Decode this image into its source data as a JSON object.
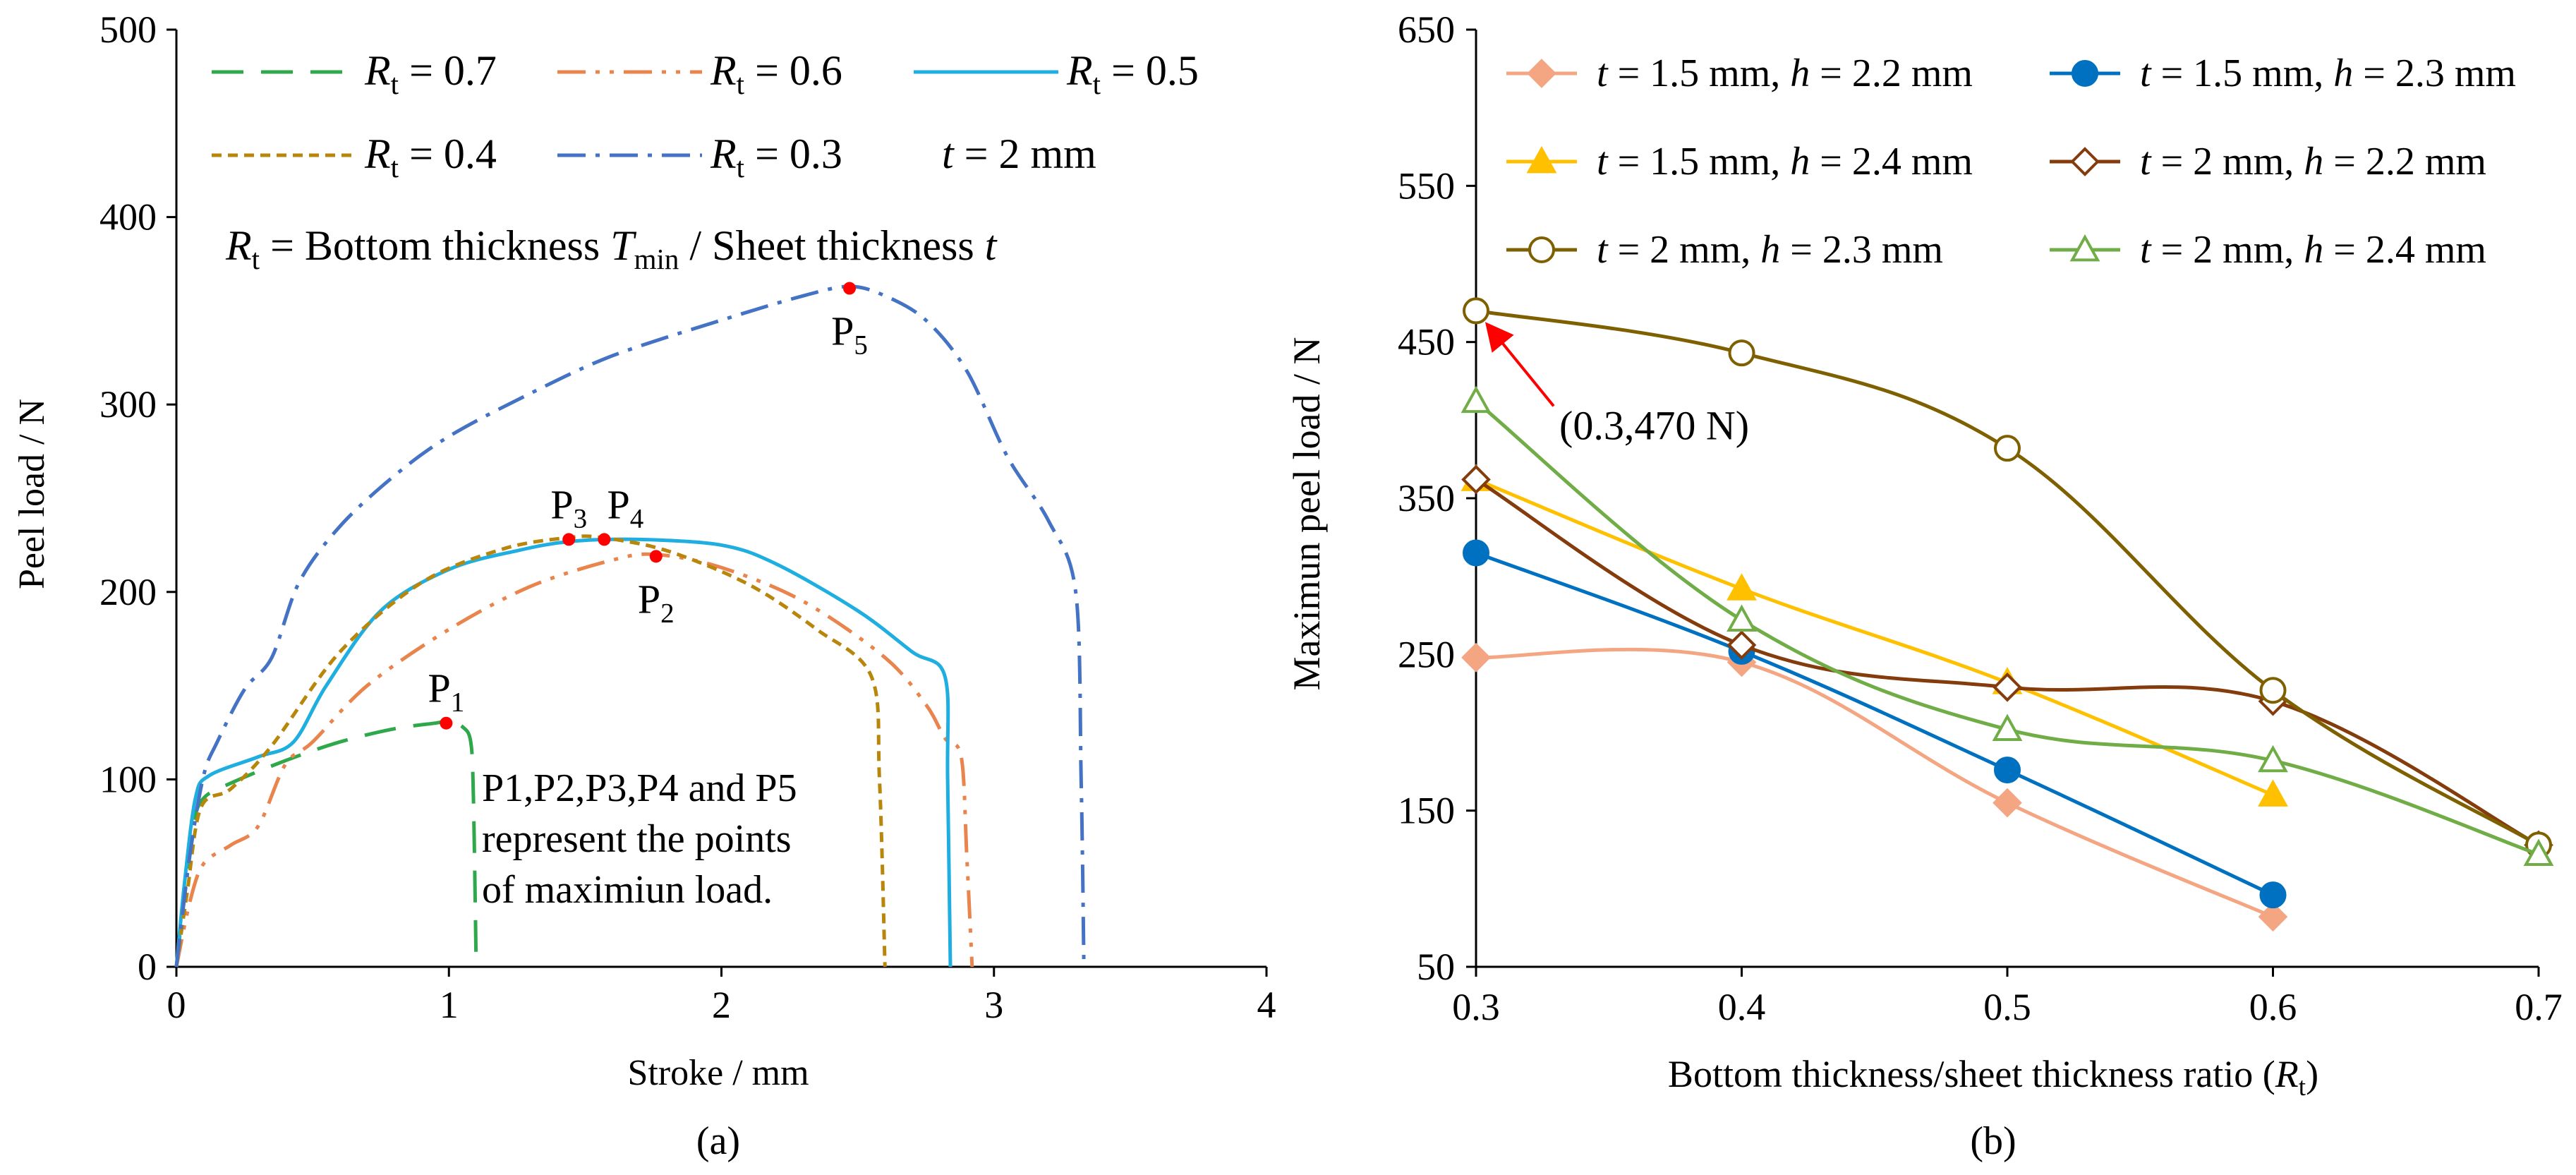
{
  "chart_data": [
    {
      "type": "line",
      "panel_label": "(a)",
      "xlabel": "Stroke / mm",
      "ylabel": "Peel load / N",
      "xlim": [
        0,
        4
      ],
      "ylim": [
        0,
        500
      ],
      "xticks": [
        "0",
        "1",
        "2",
        "3",
        "4"
      ],
      "yticks": [
        "0",
        "100",
        "200",
        "300",
        "400",
        "500"
      ],
      "legend": {
        "rows": [
          [
            {
              "series": 0,
              "sym": "R",
              "sub": "t",
              "text": " = 0.7"
            },
            {
              "series": 1,
              "sym": "R",
              "sub": "t",
              "text": " = 0.6"
            },
            {
              "series": 2,
              "sym": "R",
              "sub": "t",
              "text": " = 0.5"
            }
          ],
          [
            {
              "series": 3,
              "sym": "R",
              "sub": "t",
              "text": " = 0.4"
            },
            {
              "series": 4,
              "sym": "R",
              "sub": "t",
              "text": " = 0.3"
            },
            {
              "series": null,
              "sym": "t",
              "sub": "",
              "text": " = 2 mm"
            }
          ]
        ],
        "definition": {
          "sym1": "R",
          "sub1": "t",
          "mid": " = Bottom thickness ",
          "sym2": "T",
          "sub2": "min",
          "tail": " / Sheet thickness ",
          "sym3": "t"
        }
      },
      "series": [
        {
          "name": "Rt = 0.7",
          "color": "#2EA84A",
          "dash": "45,25",
          "points": [
            [
              0,
              0
            ],
            [
              0.03,
              40
            ],
            [
              0.06,
              75
            ],
            [
              0.1,
              90
            ],
            [
              0.2,
              98
            ],
            [
              0.4,
              110
            ],
            [
              0.6,
              120
            ],
            [
              0.8,
              127
            ],
            [
              0.95,
              130
            ],
            [
              1.0,
              131
            ],
            [
              1.05,
              128
            ],
            [
              1.08,
              120
            ],
            [
              1.09,
              90
            ],
            [
              1.1,
              0
            ]
          ]
        },
        {
          "name": "Rt = 0.6",
          "color": "#E8844C",
          "dash": "40,14,6,14,6,14",
          "points": [
            [
              0,
              0
            ],
            [
              0.05,
              35
            ],
            [
              0.1,
              55
            ],
            [
              0.2,
              65
            ],
            [
              0.3,
              75
            ],
            [
              0.4,
              108
            ],
            [
              0.5,
              120
            ],
            [
              0.7,
              150
            ],
            [
              1.0,
              180
            ],
            [
              1.3,
              203
            ],
            [
              1.6,
              217
            ],
            [
              1.76,
              220
            ],
            [
              2.0,
              213
            ],
            [
              2.3,
              195
            ],
            [
              2.6,
              165
            ],
            [
              2.75,
              140
            ],
            [
              2.82,
              122
            ],
            [
              2.88,
              112
            ],
            [
              2.9,
              60
            ],
            [
              2.92,
              0
            ]
          ]
        },
        {
          "name": "Rt = 0.5",
          "color": "#1FAEE0",
          "dash": "",
          "points": [
            [
              0,
              0
            ],
            [
              0.03,
              45
            ],
            [
              0.07,
              90
            ],
            [
              0.12,
              102
            ],
            [
              0.3,
              112
            ],
            [
              0.43,
              120
            ],
            [
              0.55,
              150
            ],
            [
              0.75,
              190
            ],
            [
              1.0,
              212
            ],
            [
              1.25,
              222
            ],
            [
              1.45,
              227
            ],
            [
              1.7,
              228
            ],
            [
              2.0,
              225
            ],
            [
              2.2,
              215
            ],
            [
              2.5,
              190
            ],
            [
              2.7,
              168
            ],
            [
              2.82,
              155
            ],
            [
              2.83,
              100
            ],
            [
              2.84,
              0
            ]
          ]
        },
        {
          "name": "Rt = 0.4",
          "color": "#B8860B",
          "dash": "14,9",
          "points": [
            [
              0,
              0
            ],
            [
              0.04,
              40
            ],
            [
              0.09,
              85
            ],
            [
              0.2,
              95
            ],
            [
              0.35,
              118
            ],
            [
              0.6,
              168
            ],
            [
              0.9,
              205
            ],
            [
              1.2,
              223
            ],
            [
              1.44,
              229
            ],
            [
              1.56,
              229
            ],
            [
              1.8,
              222
            ],
            [
              2.1,
              204
            ],
            [
              2.35,
              180
            ],
            [
              2.55,
              155
            ],
            [
              2.58,
              100
            ],
            [
              2.6,
              0
            ]
          ]
        },
        {
          "name": "Rt = 0.3",
          "color": "#4472C4",
          "dash": "40,14,6,14",
          "points": [
            [
              0,
              0
            ],
            [
              0.05,
              60
            ],
            [
              0.1,
              102
            ],
            [
              0.15,
              120
            ],
            [
              0.25,
              148
            ],
            [
              0.35,
              165
            ],
            [
              0.45,
              205
            ],
            [
              0.6,
              235
            ],
            [
              0.8,
              262
            ],
            [
              1.0,
              283
            ],
            [
              1.3,
              306
            ],
            [
              1.6,
              326
            ],
            [
              2.0,
              345
            ],
            [
              2.3,
              358
            ],
            [
              2.47,
              363
            ],
            [
              2.6,
              358
            ],
            [
              2.75,
              345
            ],
            [
              2.9,
              318
            ],
            [
              3.05,
              272
            ],
            [
              3.2,
              238
            ],
            [
              3.3,
              200
            ],
            [
              3.32,
              100
            ],
            [
              3.33,
              0
            ]
          ]
        }
      ],
      "max_points": [
        {
          "label": "P",
          "sub": "1",
          "x": 0.99,
          "y": 130,
          "anchor": "above"
        },
        {
          "label": "P",
          "sub": "2",
          "x": 1.76,
          "y": 219,
          "anchor": "below"
        },
        {
          "label": "P",
          "sub": "3",
          "x": 1.44,
          "y": 228,
          "anchor": "above"
        },
        {
          "label": "P",
          "sub": "4",
          "x": 1.57,
          "y": 228,
          "anchor": "above-right"
        },
        {
          "label": "P",
          "sub": "5",
          "x": 2.47,
          "y": 362,
          "anchor": "below"
        }
      ],
      "annotation_lines": [
        "P1,P2,P3,P4 and P5",
        "represent the points",
        "of maximiun load."
      ],
      "marker_color": "#FF0000"
    },
    {
      "type": "line",
      "panel_label": "(b)",
      "xlabel": "Bottom thickness/sheet thickness ratio (",
      "xlabel_sym": "R",
      "xlabel_sub": "t",
      "xlabel_tail": ")",
      "ylabel": "Maximun peel load  / N",
      "xlim": [
        0.3,
        0.7
      ],
      "ylim": [
        50,
        650
      ],
      "xticks": [
        "0.3",
        "0.4",
        "0.5",
        "0.6",
        "0.7"
      ],
      "yticks": [
        "50",
        "150",
        "250",
        "350",
        "450",
        "550",
        "650"
      ],
      "series": [
        {
          "name": "t = 1.5 mm, h = 2.2 mm",
          "t": "1.5",
          "h": "2.2",
          "color": "#F4A582",
          "marker": "diamond",
          "filled": true,
          "x": [
            0.3,
            0.4,
            0.5,
            0.6
          ],
          "y": [
            248,
            245,
            155,
            82
          ]
        },
        {
          "name": "t = 1.5 mm, h = 2.3 mm",
          "t": "1.5",
          "h": "2.3",
          "color": "#0070C0",
          "marker": "circle",
          "filled": true,
          "x": [
            0.3,
            0.4,
            0.5,
            0.6
          ],
          "y": [
            315,
            252,
            176,
            96
          ]
        },
        {
          "name": "t = 1.5 mm, h = 2.4 mm",
          "t": "1.5",
          "h": "2.4",
          "color": "#FFC000",
          "marker": "triangle",
          "filled": true,
          "x": [
            0.3,
            0.4,
            0.5,
            0.6
          ],
          "y": [
            362,
            292,
            232,
            160
          ]
        },
        {
          "name": "t = 2 mm, h = 2.2 mm",
          "t": "2",
          "h": "2.2",
          "color": "#843C0C",
          "marker": "diamond",
          "filled": false,
          "x": [
            0.3,
            0.4,
            0.5,
            0.6,
            0.7
          ],
          "y": [
            362,
            256,
            229,
            220,
            128
          ]
        },
        {
          "name": "t = 2 mm, h = 2.3 mm",
          "t": "2",
          "h": "2.3",
          "color": "#7F6000",
          "marker": "circle",
          "filled": false,
          "x": [
            0.3,
            0.4,
            0.5,
            0.6,
            0.7
          ],
          "y": [
            470,
            443,
            382,
            227,
            128
          ]
        },
        {
          "name": "t = 2 mm, h = 2.4 mm",
          "t": "2",
          "h": "2.4",
          "color": "#70AD47",
          "marker": "triangle",
          "filled": false,
          "x": [
            0.3,
            0.4,
            0.5,
            0.6,
            0.7
          ],
          "y": [
            412,
            272,
            202,
            182,
            122
          ]
        }
      ],
      "callout": {
        "text": "(0.3,470 N)",
        "x": 0.3,
        "y": 470,
        "color": "#FF0000"
      }
    }
  ]
}
